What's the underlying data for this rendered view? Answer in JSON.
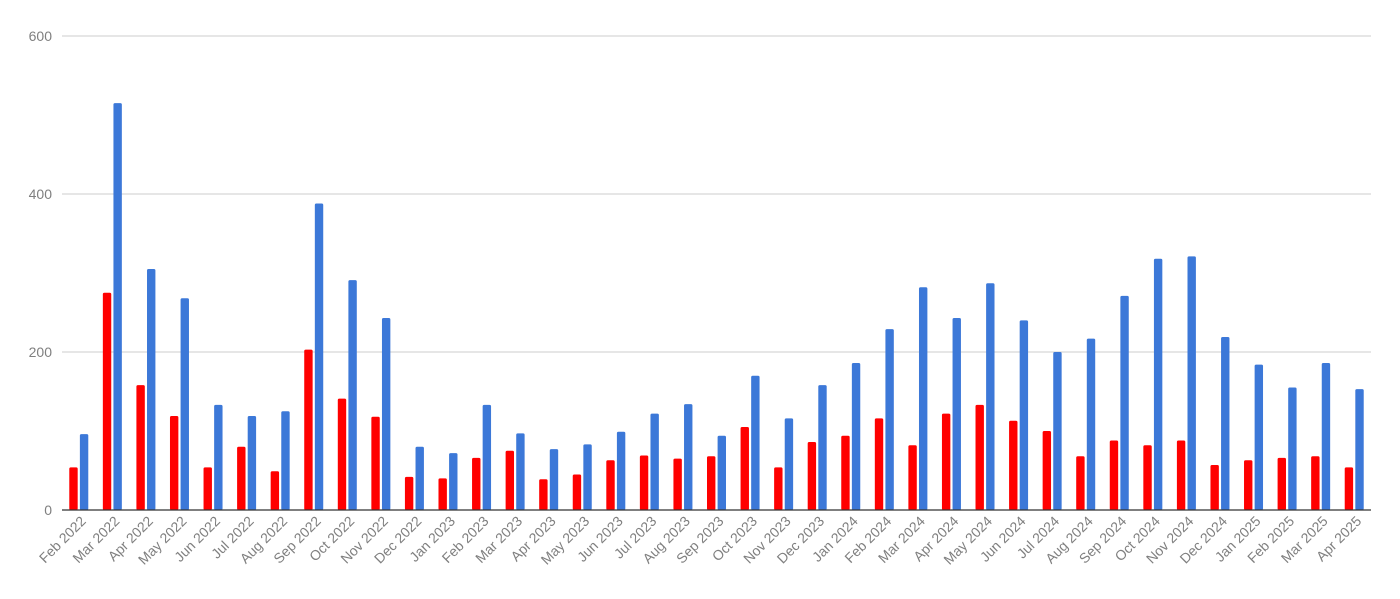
{
  "chart_data": {
    "type": "bar",
    "title": "",
    "xlabel": "",
    "ylabel": "",
    "ylim": [
      0,
      600
    ],
    "yticks": [
      "0",
      "200",
      "400",
      "600"
    ],
    "grid": true,
    "legend": "none",
    "categories": [
      "Feb 2022",
      "Mar 2022",
      "Apr 2022",
      "May 2022",
      "Jun 2022",
      "Jul 2022",
      "Aug 2022",
      "Sep 2022",
      "Oct 2022",
      "Nov 2022",
      "Dec 2022",
      "Jan 2023",
      "Feb 2023",
      "Mar 2023",
      "Apr 2023",
      "May 2023",
      "Jun 2023",
      "Jul 2023",
      "Aug 2023",
      "Sep 2023",
      "Oct 2023",
      "Nov 2023",
      "Dec 2023",
      "Jan 2024",
      "Feb 2024",
      "Mar 2024",
      "Apr 2024",
      "May 2024",
      "Jun 2024",
      "Jul 2024",
      "Aug 2024",
      "Sep 2024",
      "Oct 2024",
      "Nov 2024",
      "Dec 2024",
      "Jan 2025",
      "Feb 2025",
      "Mar 2025",
      "Apr 2025"
    ],
    "series": [
      {
        "color": "#ff0000",
        "values": [
          54,
          275,
          158,
          119,
          54,
          80,
          49,
          203,
          141,
          118,
          42,
          40,
          66,
          75,
          39,
          45,
          63,
          69,
          65,
          68,
          105,
          54,
          86,
          94,
          116,
          82,
          122,
          133,
          113,
          100,
          68,
          88,
          82,
          88,
          57,
          63,
          66,
          68,
          54
        ]
      },
      {
        "color": "#3c78d8",
        "values": [
          96,
          515,
          305,
          268,
          133,
          119,
          125,
          388,
          291,
          243,
          80,
          72,
          133,
          97,
          77,
          83,
          99,
          122,
          134,
          94,
          170,
          116,
          158,
          186,
          229,
          282,
          243,
          287,
          240,
          200,
          217,
          271,
          318,
          321,
          219,
          184,
          155,
          186,
          153
        ]
      }
    ]
  }
}
